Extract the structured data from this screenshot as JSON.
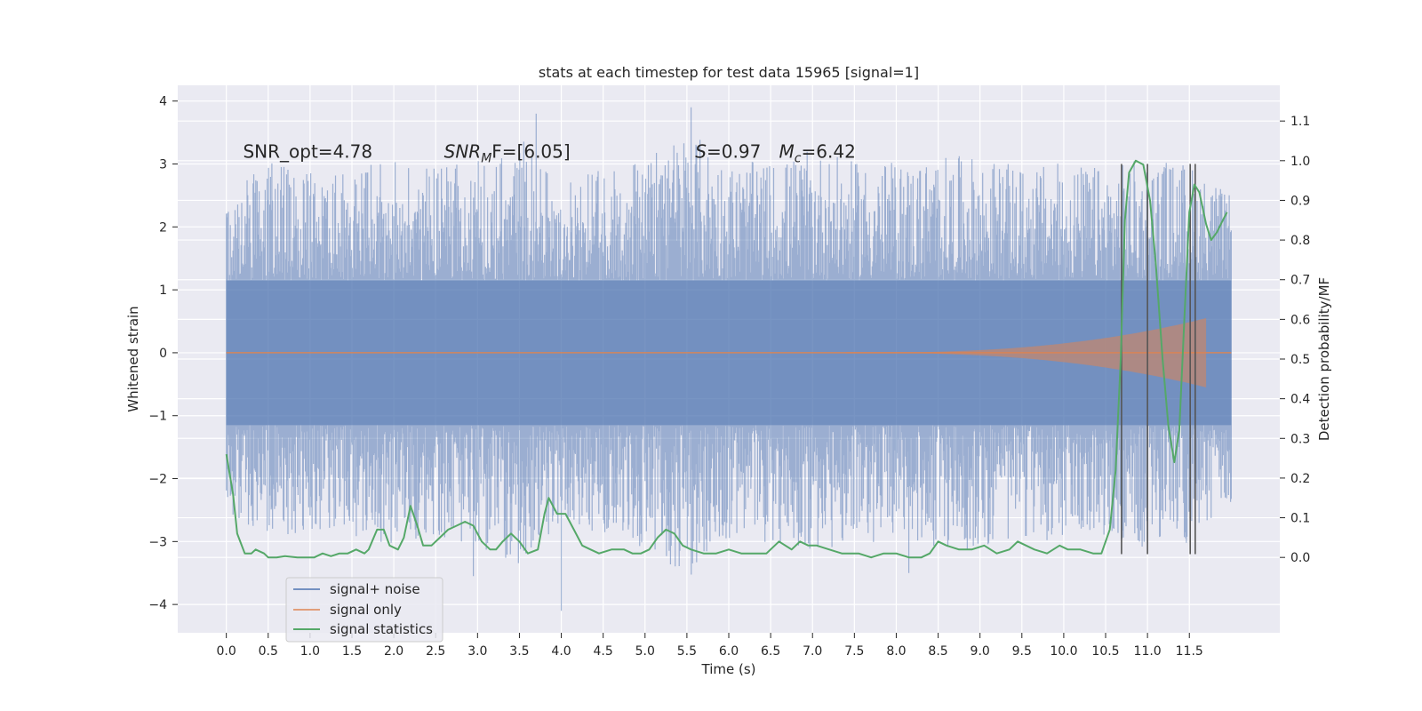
{
  "chart_data": {
    "type": "line",
    "title": "stats at each timestep for test data 15965 [signal=1]",
    "xlabel": "Time (s)",
    "ylabel": "Whitened strain",
    "y2label": "Detection probability/MF",
    "xlim": [
      -0.58,
      12.58
    ],
    "ylim": [
      -4.45,
      4.25
    ],
    "y2lim": [
      -0.19,
      1.19
    ],
    "grid": true,
    "x_ticks": [
      0.0,
      0.5,
      1.0,
      1.5,
      2.0,
      2.5,
      3.0,
      3.5,
      4.0,
      4.5,
      5.0,
      5.5,
      6.0,
      6.5,
      7.0,
      7.5,
      8.0,
      8.5,
      9.0,
      9.5,
      10.0,
      10.5,
      11.0,
      11.5
    ],
    "x_tick_labels": [
      "0.0",
      "0.5",
      "1.0",
      "1.5",
      "2.0",
      "2.5",
      "3.0",
      "3.5",
      "4.0",
      "4.5",
      "5.0",
      "5.5",
      "6.0",
      "6.5",
      "7.0",
      "7.5",
      "8.0",
      "8.5",
      "9.0",
      "9.5",
      "10.0",
      "10.5",
      "11.0",
      "11.5"
    ],
    "y_ticks": [
      -4,
      -3,
      -2,
      -1,
      0,
      1,
      2,
      3,
      4
    ],
    "y_tick_labels": [
      "−4",
      "−3",
      "−2",
      "−1",
      "0",
      "1",
      "2",
      "3",
      "4"
    ],
    "y2_ticks": [
      0.0,
      0.1,
      0.2,
      0.3,
      0.4,
      0.5,
      0.6,
      0.7,
      0.8,
      0.9,
      1.0,
      1.1
    ],
    "y2_tick_labels": [
      "0.0",
      "0.1",
      "0.2",
      "0.3",
      "0.4",
      "0.5",
      "0.6",
      "0.7",
      "0.8",
      "0.9",
      "1.0",
      "1.1"
    ],
    "annotations": [
      {
        "x": 0.2,
        "y": 3.1,
        "text": "SNR_opt=4.78",
        "math": false
      },
      {
        "x": 2.6,
        "y": 3.1,
        "base": "SNR",
        "sub": "M",
        "rest": "F=[6.05]",
        "math": true
      },
      {
        "x": 5.6,
        "y": 3.1,
        "base": "S",
        "sub": "",
        "rest": "=0.97",
        "math": true
      },
      {
        "x": 6.6,
        "y": 3.1,
        "base": "M",
        "sub": "c",
        "rest": "=6.42",
        "math": true
      }
    ],
    "series": [
      {
        "name": "signal+ noise",
        "color": "#4c72b0",
        "opacity": 0.5,
        "axis": "left",
        "kind": "noise",
        "x_range": [
          0.0,
          12.0
        ],
        "core_amplitude": 1.15,
        "spike_envelope": [
          0.0,
          2.7,
          0.5,
          3.3,
          1.0,
          3.1,
          1.5,
          3.2,
          2.0,
          3.3,
          2.5,
          3.2,
          3.0,
          3.4,
          3.5,
          3.8,
          4.0,
          2.9,
          4.5,
          3.2,
          5.0,
          3.4,
          5.5,
          3.9,
          6.0,
          3.3,
          6.5,
          3.3,
          7.0,
          3.5,
          7.5,
          3.3,
          8.0,
          3.3,
          8.5,
          3.4,
          9.0,
          3.4,
          9.5,
          3.2,
          10.0,
          3.3,
          10.5,
          3.2,
          11.0,
          3.4,
          11.5,
          3.3,
          12.0,
          2.7
        ],
        "extremes": [
          {
            "x": 3.7,
            "y": 3.8
          },
          {
            "x": 5.55,
            "y": 3.9
          },
          {
            "x": 4.0,
            "y": -4.1
          },
          {
            "x": 2.95,
            "y": -3.55
          },
          {
            "x": 8.15,
            "y": -3.5
          }
        ]
      },
      {
        "name": "signal only",
        "color": "#dd8452",
        "opacity": 0.5,
        "axis": "left",
        "kind": "chirp",
        "start_x": 7.4,
        "end_x": 11.7,
        "peak_amplitude": 0.55,
        "flat_until": 12.0
      },
      {
        "name": "signal statistics",
        "color": "#55a868",
        "opacity": 1.0,
        "axis": "right",
        "kind": "line",
        "points": [
          [
            0.0,
            0.26
          ],
          [
            0.08,
            0.16
          ],
          [
            0.13,
            0.06
          ],
          [
            0.22,
            0.01
          ],
          [
            0.3,
            0.01
          ],
          [
            0.35,
            0.02
          ],
          [
            0.45,
            0.01
          ],
          [
            0.5,
            0.0
          ],
          [
            0.6,
            0.0
          ],
          [
            0.7,
            0.003
          ],
          [
            0.85,
            0.0
          ],
          [
            0.95,
            0.0
          ],
          [
            1.05,
            0.0
          ],
          [
            1.15,
            0.01
          ],
          [
            1.25,
            0.003
          ],
          [
            1.35,
            0.01
          ],
          [
            1.45,
            0.01
          ],
          [
            1.55,
            0.02
          ],
          [
            1.65,
            0.01
          ],
          [
            1.7,
            0.02
          ],
          [
            1.8,
            0.07
          ],
          [
            1.88,
            0.07
          ],
          [
            1.95,
            0.03
          ],
          [
            2.05,
            0.02
          ],
          [
            2.12,
            0.05
          ],
          [
            2.2,
            0.13
          ],
          [
            2.28,
            0.08
          ],
          [
            2.35,
            0.03
          ],
          [
            2.45,
            0.03
          ],
          [
            2.55,
            0.05
          ],
          [
            2.65,
            0.07
          ],
          [
            2.75,
            0.08
          ],
          [
            2.85,
            0.09
          ],
          [
            2.95,
            0.08
          ],
          [
            3.05,
            0.04
          ],
          [
            3.15,
            0.02
          ],
          [
            3.22,
            0.02
          ],
          [
            3.3,
            0.04
          ],
          [
            3.4,
            0.06
          ],
          [
            3.5,
            0.04
          ],
          [
            3.6,
            0.01
          ],
          [
            3.72,
            0.02
          ],
          [
            3.8,
            0.11
          ],
          [
            3.85,
            0.15
          ],
          [
            3.95,
            0.11
          ],
          [
            4.05,
            0.11
          ],
          [
            4.15,
            0.07
          ],
          [
            4.25,
            0.03
          ],
          [
            4.35,
            0.02
          ],
          [
            4.45,
            0.01
          ],
          [
            4.6,
            0.02
          ],
          [
            4.75,
            0.02
          ],
          [
            4.85,
            0.01
          ],
          [
            4.95,
            0.01
          ],
          [
            5.05,
            0.02
          ],
          [
            5.15,
            0.05
          ],
          [
            5.25,
            0.07
          ],
          [
            5.35,
            0.06
          ],
          [
            5.45,
            0.03
          ],
          [
            5.55,
            0.02
          ],
          [
            5.7,
            0.01
          ],
          [
            5.85,
            0.01
          ],
          [
            6.0,
            0.02
          ],
          [
            6.15,
            0.01
          ],
          [
            6.3,
            0.01
          ],
          [
            6.45,
            0.01
          ],
          [
            6.6,
            0.04
          ],
          [
            6.75,
            0.02
          ],
          [
            6.85,
            0.04
          ],
          [
            6.95,
            0.03
          ],
          [
            7.05,
            0.03
          ],
          [
            7.2,
            0.02
          ],
          [
            7.35,
            0.01
          ],
          [
            7.55,
            0.01
          ],
          [
            7.7,
            0.0
          ],
          [
            7.85,
            0.01
          ],
          [
            8.0,
            0.01
          ],
          [
            8.15,
            0.0
          ],
          [
            8.3,
            0.0
          ],
          [
            8.4,
            0.01
          ],
          [
            8.5,
            0.04
          ],
          [
            8.6,
            0.03
          ],
          [
            8.75,
            0.02
          ],
          [
            8.9,
            0.02
          ],
          [
            9.05,
            0.03
          ],
          [
            9.2,
            0.01
          ],
          [
            9.35,
            0.02
          ],
          [
            9.45,
            0.04
          ],
          [
            9.55,
            0.03
          ],
          [
            9.65,
            0.02
          ],
          [
            9.8,
            0.01
          ],
          [
            9.95,
            0.03
          ],
          [
            10.05,
            0.02
          ],
          [
            10.2,
            0.02
          ],
          [
            10.35,
            0.01
          ],
          [
            10.45,
            0.01
          ],
          [
            10.55,
            0.07
          ],
          [
            10.62,
            0.22
          ],
          [
            10.68,
            0.5
          ],
          [
            10.73,
            0.85
          ],
          [
            10.78,
            0.97
          ],
          [
            10.86,
            1.0
          ],
          [
            10.95,
            0.99
          ],
          [
            11.03,
            0.9
          ],
          [
            11.1,
            0.74
          ],
          [
            11.18,
            0.5
          ],
          [
            11.25,
            0.33
          ],
          [
            11.32,
            0.24
          ],
          [
            11.38,
            0.32
          ],
          [
            11.44,
            0.6
          ],
          [
            11.5,
            0.87
          ],
          [
            11.56,
            0.94
          ],
          [
            11.62,
            0.92
          ],
          [
            11.7,
            0.84
          ],
          [
            11.76,
            0.8
          ],
          [
            11.83,
            0.82
          ],
          [
            11.9,
            0.85
          ],
          [
            11.95,
            0.87
          ]
        ]
      }
    ],
    "vlines": [
      10.69,
      11.0,
      11.51,
      11.57
    ],
    "vline_color": "#555555",
    "vline_ylim": [
      -3.2,
      3.0
    ],
    "legend": {
      "location": "lower left",
      "entries": [
        "signal+ noise",
        "signal only",
        "signal statistics"
      ]
    }
  }
}
